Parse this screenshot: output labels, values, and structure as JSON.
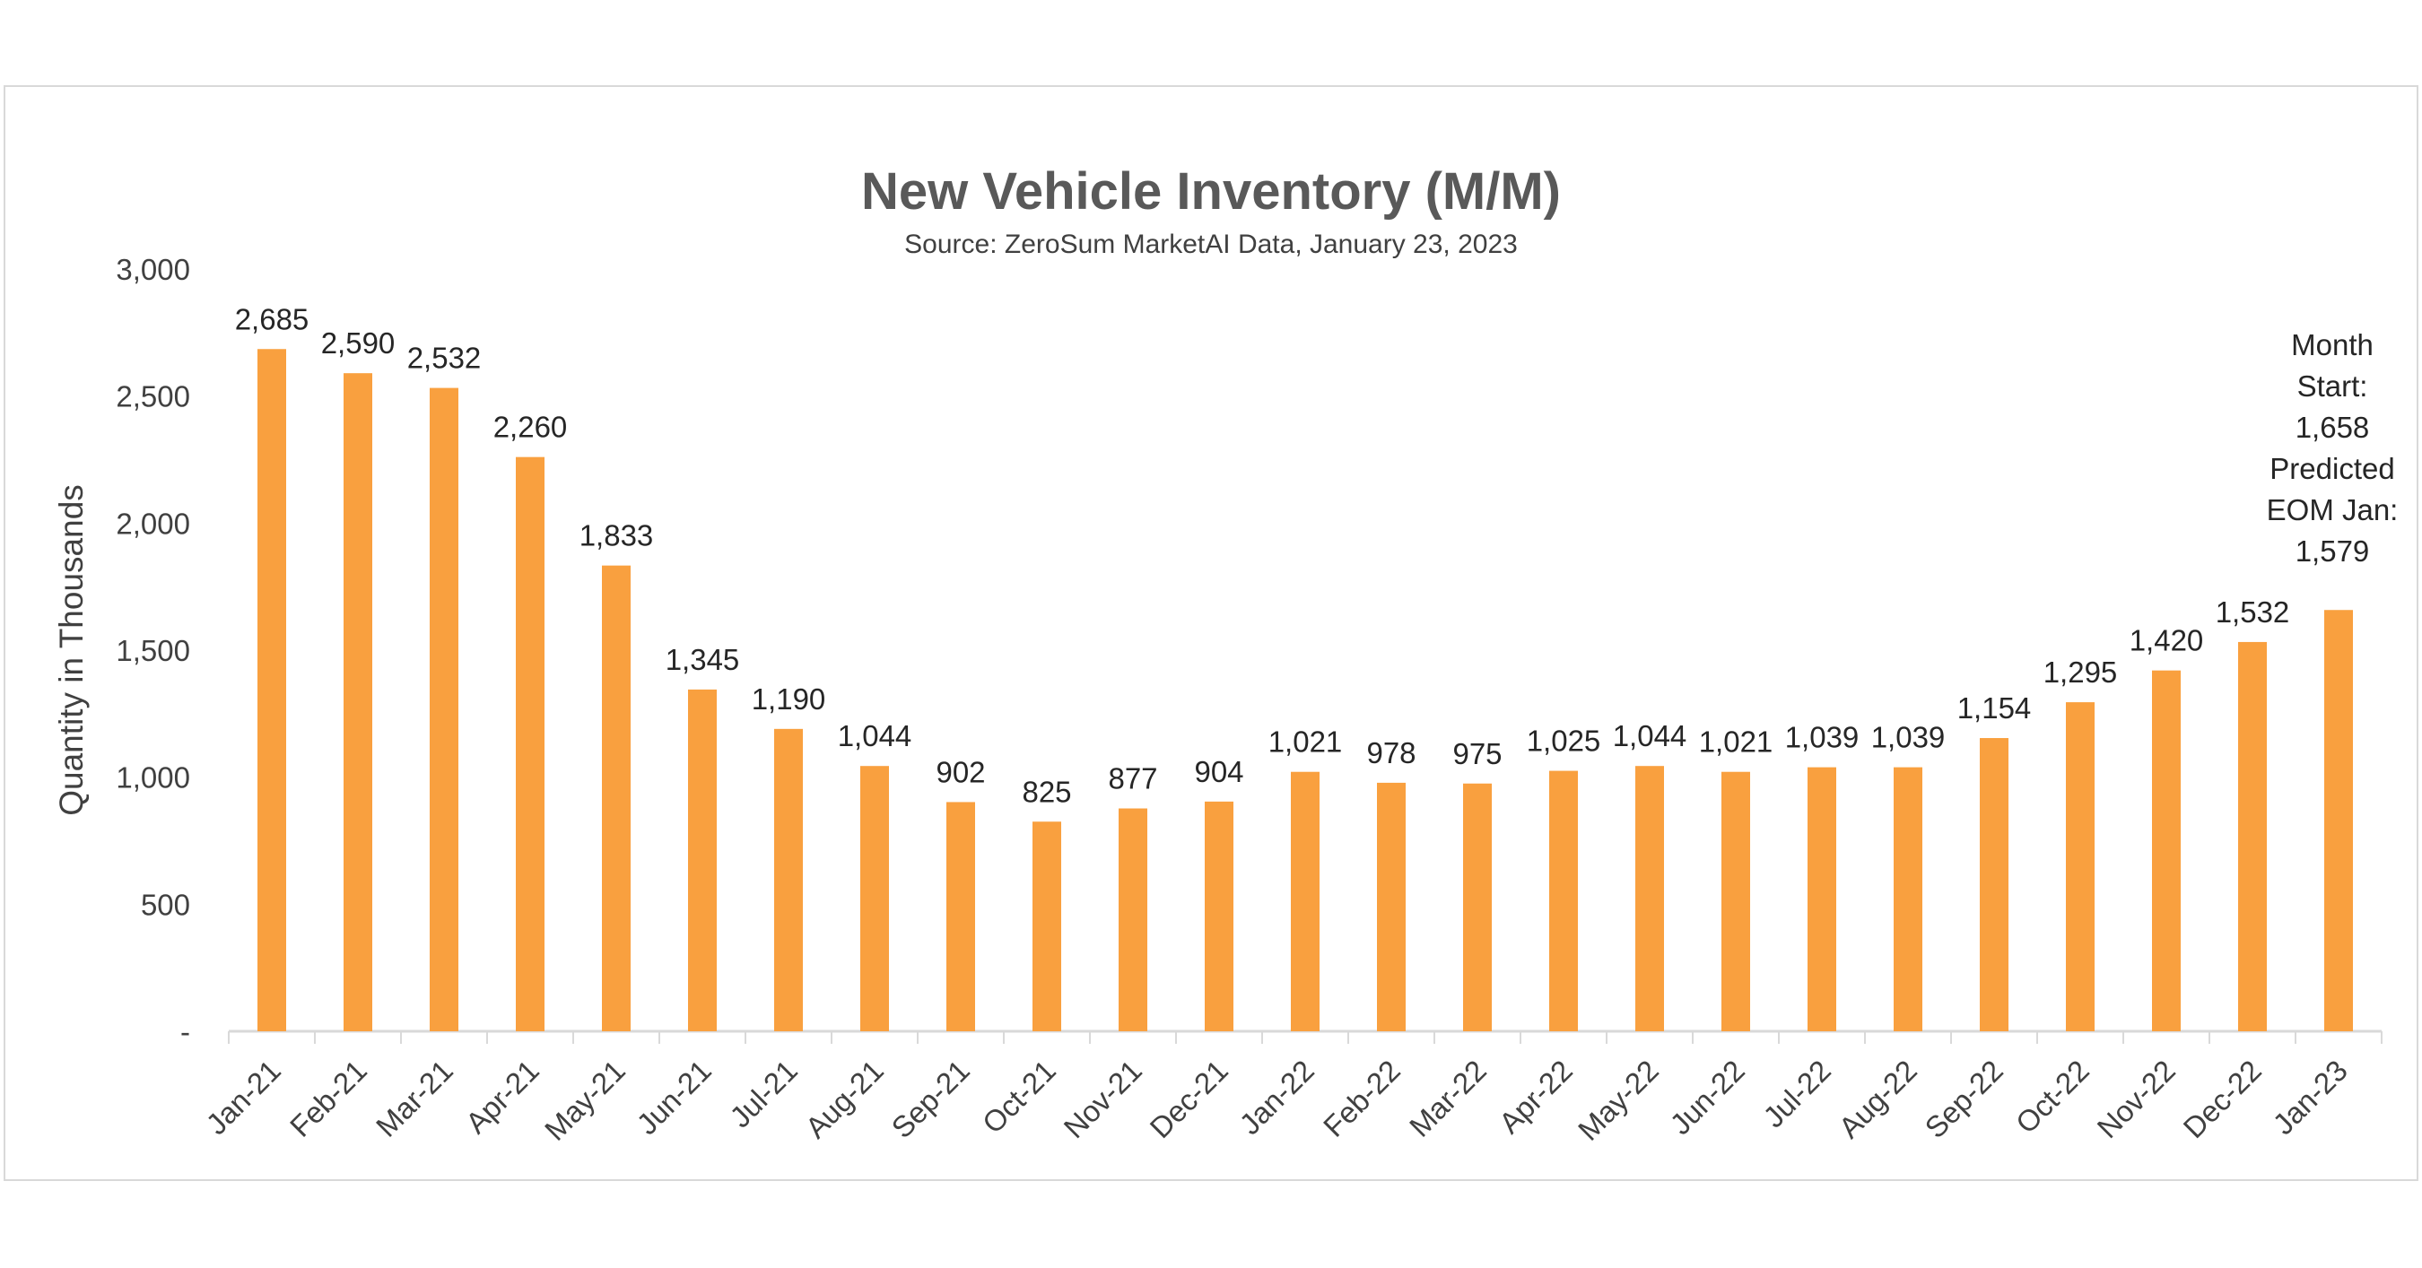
{
  "chart_data": {
    "type": "bar",
    "title": "New Vehicle Inventory (M/M)",
    "subtitle": "Source: ZeroSum MarketAI Data, January 23, 2023",
    "ylabel": "Quantity in Thousands",
    "xlabel": "",
    "ylim": [
      0,
      3000
    ],
    "yticks": [
      0,
      500,
      1000,
      1500,
      2000,
      2500,
      3000
    ],
    "ytick_labels": [
      "-",
      "500",
      "1,000",
      "1,500",
      "2,000",
      "2,500",
      "3,000"
    ],
    "grid": false,
    "bar_color": "#F9A03F",
    "categories": [
      "Jan-21",
      "Feb-21",
      "Mar-21",
      "Apr-21",
      "May-21",
      "Jun-21",
      "Jul-21",
      "Aug-21",
      "Sep-21",
      "Oct-21",
      "Nov-21",
      "Dec-21",
      "Jan-22",
      "Feb-22",
      "Mar-22",
      "Apr-22",
      "May-22",
      "Jun-22",
      "Jul-22",
      "Aug-22",
      "Sep-22",
      "Oct-22",
      "Nov-22",
      "Dec-22",
      "Jan-23"
    ],
    "values": [
      2685,
      2590,
      2532,
      2260,
      1833,
      1345,
      1190,
      1044,
      902,
      825,
      877,
      904,
      1021,
      978,
      975,
      1025,
      1044,
      1021,
      1039,
      1039,
      1154,
      1295,
      1420,
      1532,
      1658
    ],
    "data_labels": [
      "2,685",
      "2,590",
      "2,532",
      "2,260",
      "1,833",
      "1,345",
      "1,190",
      "1,044",
      "902",
      "825",
      "877",
      "904",
      "1,021",
      "978",
      "975",
      "1,025",
      "1,044",
      "1,021",
      "1,039",
      "1,039",
      "1,154",
      "1,295",
      "1,420",
      "1,532",
      ""
    ],
    "annotation_lines": [
      "Month",
      "Start:",
      "1,658",
      "Predicted",
      "EOM Jan:",
      "1,579"
    ]
  }
}
